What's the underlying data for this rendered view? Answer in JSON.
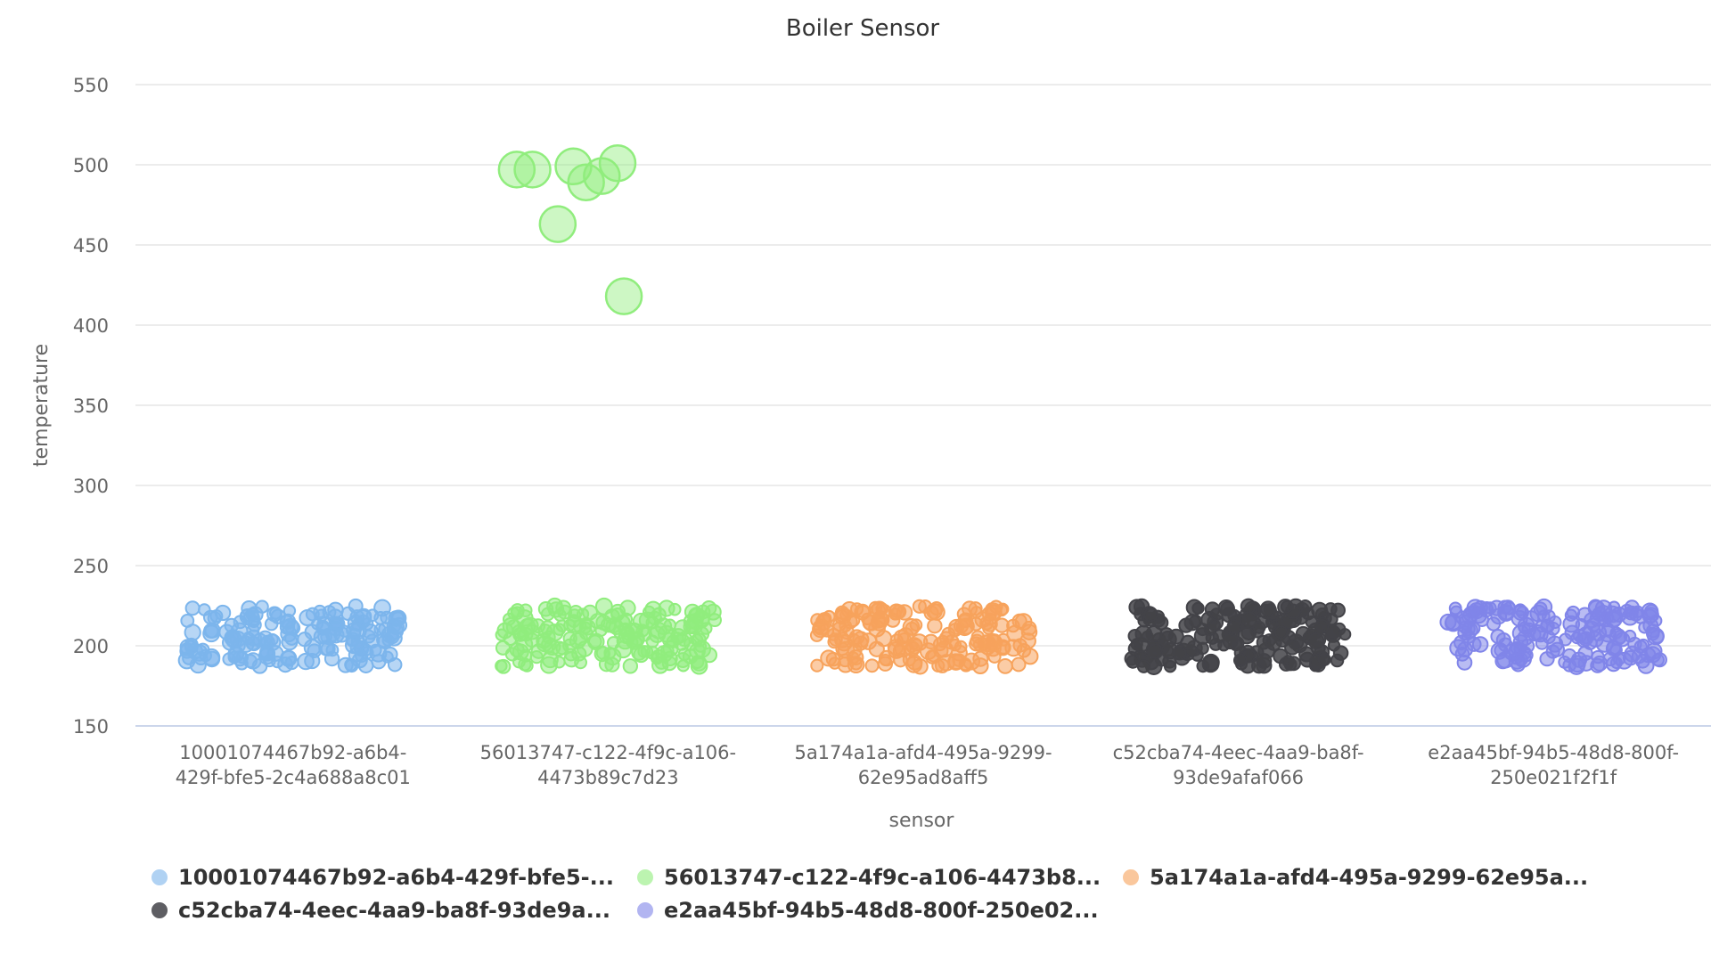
{
  "chart_data": {
    "type": "scatter",
    "title": "Boiler Sensor",
    "xlabel": "sensor",
    "ylabel": "temperature",
    "ylim": [
      150,
      550
    ],
    "yticks": [
      150,
      200,
      250,
      300,
      350,
      400,
      450,
      500,
      550
    ],
    "grid": true,
    "legend_position": "bottom",
    "categories": [
      [
        "10001074467b92-a6b4-",
        "429f-bfe5-2c4a688a8c01"
      ],
      [
        "56013747-c122-4f9c-a106-",
        "4473b89c7d23"
      ],
      [
        "5a174a1a-afd4-495a-9299-",
        "62e95ad8aff5"
      ],
      [
        "c52cba74-4eec-4aa9-ba8f-",
        "93de9afaf066"
      ],
      [
        "e2aa45bf-94b5-48d8-800f-",
        "250e021f2f1f"
      ]
    ],
    "series": [
      {
        "name": "10001074467b92-a6b4-429f-bfe5-...",
        "color": "#7cb5ec",
        "cluster": {
          "x_offset": [
            -0.34,
            0.34
          ],
          "y_range": [
            187,
            225
          ],
          "count": 180
        },
        "points": []
      },
      {
        "name": "56013747-c122-4f9c-a106-4473b8...",
        "color": "#90ed7d",
        "cluster": {
          "x_offset": [
            -0.34,
            0.34
          ],
          "y_range": [
            187,
            225
          ],
          "count": 180
        },
        "points": [
          {
            "x_offset": -0.29,
            "y": 497
          },
          {
            "x_offset": -0.24,
            "y": 497
          },
          {
            "x_offset": -0.11,
            "y": 499
          },
          {
            "x_offset": -0.07,
            "y": 489
          },
          {
            "x_offset": -0.02,
            "y": 493
          },
          {
            "x_offset": 0.03,
            "y": 501
          },
          {
            "x_offset": -0.16,
            "y": 463
          },
          {
            "x_offset": 0.05,
            "y": 418
          }
        ]
      },
      {
        "name": "5a174a1a-afd4-495a-9299-62e95a...",
        "color": "#f7a35c",
        "cluster": {
          "x_offset": [
            -0.34,
            0.34
          ],
          "y_range": [
            187,
            225
          ],
          "count": 180
        },
        "points": []
      },
      {
        "name": "c52cba74-4eec-4aa9-ba8f-93de9a...",
        "color": "#434348",
        "cluster": {
          "x_offset": [
            -0.34,
            0.34
          ],
          "y_range": [
            187,
            225
          ],
          "count": 180
        },
        "points": []
      },
      {
        "name": "e2aa45bf-94b5-48d8-800f-250e02...",
        "color": "#8085e9",
        "cluster": {
          "x_offset": [
            -0.34,
            0.34
          ],
          "y_range": [
            187,
            225
          ],
          "count": 180
        },
        "points": []
      }
    ]
  }
}
